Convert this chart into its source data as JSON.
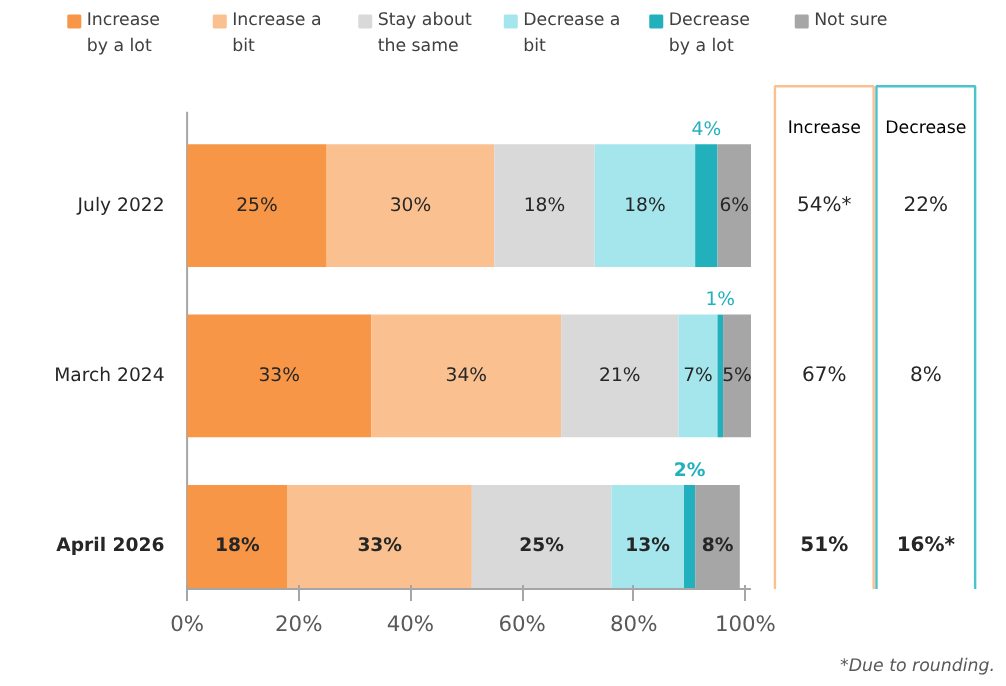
{
  "chart_data": {
    "type": "bar",
    "orientation": "horizontal",
    "stacked": true,
    "categories": [
      "July 2022",
      "March 2024",
      "April 2026"
    ],
    "series": [
      {
        "name": "Increase by a lot",
        "color": "#f79646",
        "values": [
          25,
          33,
          18
        ],
        "value_labels": [
          "25%",
          "33%",
          "18%"
        ]
      },
      {
        "name": "Increase a bit",
        "color": "#fac090",
        "values": [
          30,
          34,
          33
        ],
        "value_labels": [
          "30%",
          "34%",
          "33%"
        ]
      },
      {
        "name": "Stay about the same",
        "color": "#d9d9d9",
        "values": [
          18,
          21,
          25
        ],
        "value_labels": [
          "18%",
          "21%",
          "25%"
        ]
      },
      {
        "name": "Decrease a bit",
        "color": "#a5e6ed",
        "values": [
          18,
          7,
          13
        ],
        "value_labels": [
          "18%",
          "7%",
          "13%"
        ]
      },
      {
        "name": "Decrease by a lot",
        "color": "#23b0bd",
        "values": [
          4,
          1,
          2
        ],
        "value_labels": [
          "4%",
          "1%",
          "2%"
        ]
      },
      {
        "name": "Not sure",
        "color": "#a6a6a6",
        "values": [
          6,
          5,
          8
        ],
        "value_labels": [
          "6%",
          "5%",
          "8%"
        ]
      }
    ],
    "xlim": [
      0,
      101
    ],
    "xticks": [
      {
        "value": 0,
        "label": "0%"
      },
      {
        "value": 20,
        "label": "20%"
      },
      {
        "value": 40,
        "label": "40%"
      },
      {
        "value": 60,
        "label": "60%"
      },
      {
        "value": 80,
        "label": "80%"
      },
      {
        "value": 100,
        "label": "100%"
      }
    ],
    "legend": "top",
    "grid": false,
    "annotations": [
      "Increase",
      "Decrease",
      "54%*",
      "22%",
      "67%",
      "8%",
      "51%",
      "16%*",
      "*Due to rounding."
    ]
  }
}
